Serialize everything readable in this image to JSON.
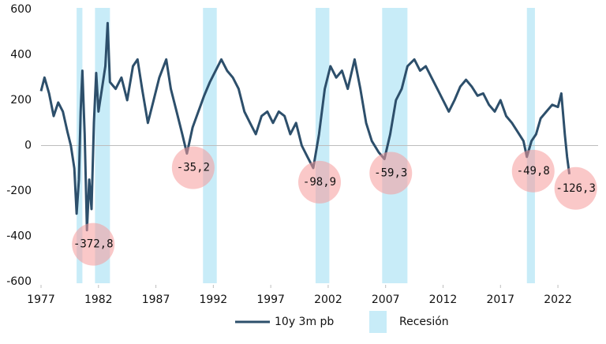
{
  "chart_data": {
    "type": "line",
    "xlim": [
      1977,
      2025.5
    ],
    "xticks": [
      1977,
      1982,
      1987,
      1992,
      1997,
      2002,
      2007,
      2012,
      2017,
      2022
    ],
    "ylim": [
      -600,
      600
    ],
    "yticks": [
      -600,
      -400,
      -200,
      0,
      200,
      400,
      600
    ],
    "grid": false,
    "legend": "bottom",
    "series": [
      {
        "name": "10y 3m pb",
        "color": "#2d4f6b",
        "x": [
          1977.0,
          1977.3,
          1977.7,
          1978.1,
          1978.5,
          1978.9,
          1979.3,
          1979.6,
          1979.9,
          1980.1,
          1980.3,
          1980.45,
          1980.6,
          1980.8,
          1981.0,
          1981.2,
          1981.4,
          1981.6,
          1981.8,
          1982.0,
          1982.3,
          1982.6,
          1982.8,
          1983.0,
          1983.5,
          1984.0,
          1984.5,
          1985.0,
          1985.4,
          1985.8,
          1986.3,
          1986.8,
          1987.3,
          1987.9,
          1988.3,
          1988.8,
          1989.3,
          1989.7,
          1990.2,
          1990.7,
          1991.2,
          1991.7,
          1992.2,
          1992.7,
          1993.2,
          1993.7,
          1994.2,
          1994.7,
          1995.2,
          1995.7,
          1996.2,
          1996.7,
          1997.2,
          1997.7,
          1998.2,
          1998.7,
          1999.2,
          1999.7,
          2000.2,
          2000.7,
          2001.2,
          2001.7,
          2002.2,
          2002.7,
          2003.2,
          2003.7,
          2004.3,
          2004.8,
          2005.3,
          2005.8,
          2006.4,
          2006.9,
          2007.4,
          2007.9,
          2008.4,
          2008.9,
          2009.5,
          2010.0,
          2010.5,
          2011.0,
          2011.5,
          2012.0,
          2012.5,
          2013.0,
          2013.5,
          2014.0,
          2014.5,
          2015.0,
          2015.5,
          2016.0,
          2016.5,
          2017.0,
          2017.5,
          2018.0,
          2018.5,
          2019.0,
          2019.3,
          2019.7,
          2020.1,
          2020.5,
          2021.0,
          2021.5,
          2022.0,
          2022.3,
          2022.6,
          2022.8,
          2023.0
        ],
        "values": [
          240,
          300,
          230,
          130,
          190,
          150,
          60,
          0,
          -100,
          -300,
          -150,
          150,
          330,
          50,
          -372.8,
          -150,
          -280,
          100,
          320,
          150,
          250,
          350,
          540,
          280,
          250,
          300,
          200,
          350,
          380,
          250,
          100,
          200,
          300,
          380,
          250,
          150,
          50,
          -35.2,
          80,
          150,
          220,
          280,
          330,
          380,
          330,
          300,
          250,
          150,
          100,
          50,
          130,
          150,
          100,
          150,
          130,
          50,
          100,
          0,
          -50,
          -98.9,
          50,
          250,
          350,
          300,
          330,
          250,
          380,
          250,
          100,
          20,
          -30,
          -59.3,
          50,
          200,
          250,
          350,
          380,
          330,
          350,
          300,
          250,
          200,
          150,
          200,
          260,
          290,
          260,
          220,
          230,
          180,
          150,
          200,
          130,
          100,
          60,
          20,
          -49.8,
          20,
          50,
          120,
          150,
          180,
          170,
          230,
          50,
          -50,
          -126.3
        ]
      }
    ],
    "recessions": {
      "name": "Recesión",
      "color": "#c8ecf8",
      "spans": [
        [
          1980.1,
          1980.6
        ],
        [
          1981.7,
          1983.0
        ],
        [
          1991.1,
          1992.3
        ],
        [
          2000.9,
          2002.1
        ],
        [
          2006.7,
          2008.9
        ],
        [
          2019.3,
          2020.0
        ]
      ]
    },
    "annotations": [
      {
        "x": 1981.0,
        "value": -372.8,
        "label": "-372,8"
      },
      {
        "x": 1989.7,
        "value": -35.2,
        "label": "-35,2"
      },
      {
        "x": 2000.7,
        "value": -98.9,
        "label": "-98,9"
      },
      {
        "x": 2006.9,
        "value": -59.3,
        "label": "-59,3"
      },
      {
        "x": 2019.3,
        "value": -49.8,
        "label": "-49,8"
      },
      {
        "x": 2023.0,
        "value": -126.3,
        "label": "-126,3"
      }
    ]
  }
}
